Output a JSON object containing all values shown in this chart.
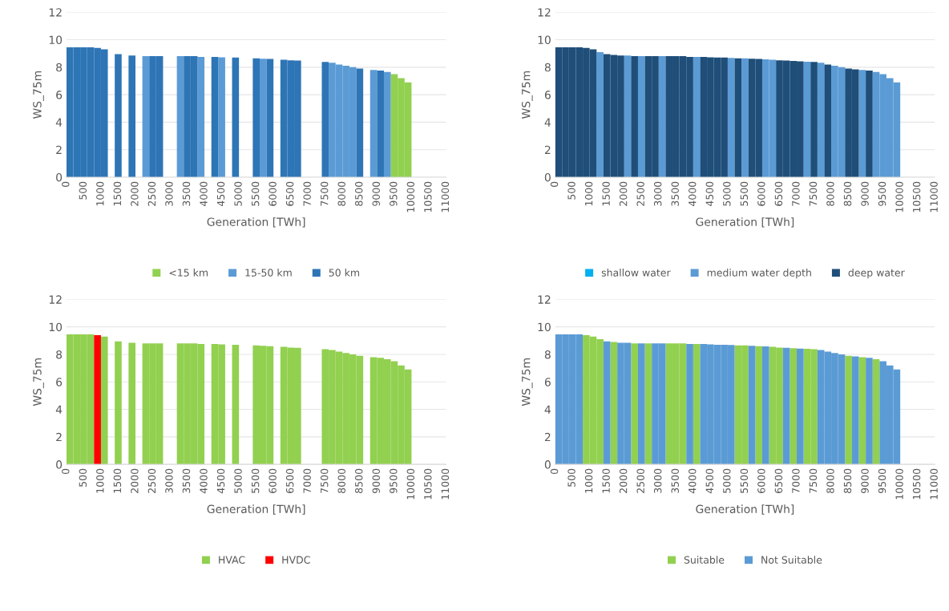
{
  "chart_data": [
    {
      "type": "bar",
      "xlabel": "Generation [TWh]",
      "ylabel": "WS_75m",
      "xlim": [
        0,
        11000
      ],
      "xticks": [
        0,
        500,
        1000,
        1500,
        2000,
        2500,
        3000,
        3500,
        4000,
        4500,
        5000,
        5500,
        6000,
        6500,
        7000,
        7500,
        8000,
        8500,
        9000,
        9500,
        10000,
        10500,
        11000
      ],
      "ylim": [
        0,
        12
      ],
      "yticks": [
        0,
        2,
        4,
        6,
        8,
        10,
        12
      ],
      "grid": "y",
      "legend": "bottom",
      "series": [
        {
          "name": "<15 km",
          "color": "#92d050",
          "x": [
            9500,
            9700,
            9900
          ],
          "values": [
            7.5,
            7.2,
            6.9
          ]
        },
        {
          "name": "15-50 km",
          "color": "#5b9bd5",
          "x": [
            2300,
            3300,
            3900,
            4500,
            5700,
            7700,
            7900,
            8100,
            8300,
            8900,
            9300
          ],
          "values": [
            8.8,
            8.8,
            8.75,
            8.72,
            8.62,
            8.32,
            8.2,
            8.1,
            8.0,
            7.8,
            7.65
          ]
        },
        {
          "name": "50 km",
          "color": "#2e75b6",
          "x": [
            100,
            300,
            500,
            700,
            900,
            1100,
            1500,
            1900,
            2500,
            2700,
            3500,
            3700,
            4300,
            4900,
            5500,
            5900,
            6300,
            6500,
            6700,
            7500,
            8500,
            9100
          ],
          "values": [
            9.45,
            9.45,
            9.45,
            9.45,
            9.4,
            9.3,
            8.95,
            8.85,
            8.8,
            8.8,
            8.8,
            8.8,
            8.75,
            8.7,
            8.65,
            8.6,
            8.55,
            8.5,
            8.48,
            8.38,
            7.9,
            7.75
          ]
        }
      ]
    },
    {
      "type": "bar",
      "xlabel": "Generation [TWh]",
      "ylabel": "WS_75m",
      "xlim": [
        0,
        11000
      ],
      "xticks": [
        0,
        500,
        1000,
        1500,
        2000,
        2500,
        3000,
        3500,
        4000,
        4500,
        5000,
        5500,
        6000,
        6500,
        7000,
        7500,
        8000,
        8500,
        9000,
        9500,
        10000,
        10500,
        11000
      ],
      "ylim": [
        0,
        12
      ],
      "yticks": [
        0,
        2,
        4,
        6,
        8,
        10,
        12
      ],
      "grid": "y",
      "legend": "bottom",
      "series": [
        {
          "name": "shallow water",
          "color": "#00b0f0"
        },
        {
          "name": "medium water depth",
          "color": "#5b9bd5",
          "x": [
            1300,
            2100,
            2500,
            3100,
            4100,
            5100,
            5500,
            6100,
            6300,
            7300,
            7700,
            8100,
            8300,
            8900,
            9300,
            9500,
            9700,
            9900
          ],
          "values": [
            9.1,
            8.85,
            8.8,
            8.8,
            8.75,
            8.68,
            8.65,
            8.58,
            8.55,
            8.4,
            8.32,
            8.1,
            8.0,
            7.8,
            7.65,
            7.5,
            7.2,
            6.9
          ]
        },
        {
          "name": "deep water",
          "color": "#1f4e79",
          "x": [
            100,
            300,
            500,
            700,
            900,
            1100,
            1500,
            1700,
            1900,
            2300,
            2700,
            2900,
            3300,
            3500,
            3700,
            3900,
            4300,
            4500,
            4700,
            4900,
            5300,
            5700,
            5900,
            6500,
            6700,
            6900,
            7100,
            7500,
            7900,
            8500,
            8700,
            9100
          ],
          "values": [
            9.45,
            9.45,
            9.45,
            9.45,
            9.4,
            9.3,
            8.95,
            8.9,
            8.85,
            8.8,
            8.8,
            8.8,
            8.8,
            8.8,
            8.8,
            8.75,
            8.75,
            8.72,
            8.7,
            8.7,
            8.65,
            8.62,
            8.6,
            8.5,
            8.48,
            8.45,
            8.42,
            8.38,
            8.2,
            7.9,
            7.85,
            7.75
          ]
        }
      ]
    },
    {
      "type": "bar",
      "xlabel": "Generation [TWh]",
      "ylabel": "WS_75m",
      "xlim": [
        0,
        11000
      ],
      "xticks": [
        0,
        500,
        1000,
        1500,
        2000,
        2500,
        3000,
        3500,
        4000,
        4500,
        5000,
        5500,
        6000,
        6500,
        7000,
        7500,
        8000,
        8500,
        9000,
        9500,
        10000,
        10500,
        11000
      ],
      "ylim": [
        0,
        12
      ],
      "yticks": [
        0,
        2,
        4,
        6,
        8,
        10,
        12
      ],
      "grid": "y",
      "legend": "bottom",
      "series": [
        {
          "name": "HVAC",
          "color": "#92d050",
          "x": [
            100,
            300,
            500,
            700,
            1100,
            1500,
            1900,
            2300,
            2500,
            2700,
            3300,
            3500,
            3700,
            3900,
            4300,
            4500,
            4900,
            5500,
            5700,
            5900,
            6300,
            6500,
            6700,
            7500,
            7700,
            7900,
            8100,
            8300,
            8500,
            8900,
            9100,
            9300,
            9500,
            9700,
            9900
          ],
          "values": [
            9.45,
            9.45,
            9.45,
            9.45,
            9.3,
            8.95,
            8.85,
            8.8,
            8.8,
            8.8,
            8.8,
            8.8,
            8.8,
            8.75,
            8.75,
            8.72,
            8.7,
            8.65,
            8.62,
            8.6,
            8.55,
            8.5,
            8.48,
            8.38,
            8.32,
            8.2,
            8.1,
            8.0,
            7.9,
            7.8,
            7.75,
            7.65,
            7.5,
            7.2,
            6.9
          ]
        },
        {
          "name": "HVDC",
          "color": "#ff0000",
          "x": [
            900
          ],
          "values": [
            9.4
          ]
        }
      ]
    },
    {
      "type": "bar",
      "xlabel": "Generation [TWh]",
      "ylabel": "WS_75m",
      "xlim": [
        0,
        11000
      ],
      "xticks": [
        0,
        500,
        1000,
        1500,
        2000,
        2500,
        3000,
        3500,
        4000,
        4500,
        5000,
        5500,
        6000,
        6500,
        7000,
        7500,
        8000,
        8500,
        9000,
        9500,
        10000,
        10500,
        11000
      ],
      "ylim": [
        0,
        12
      ],
      "yticks": [
        0,
        2,
        4,
        6,
        8,
        10,
        12
      ],
      "grid": "y",
      "legend": "bottom",
      "series": [
        {
          "name": "Suitable",
          "color": "#92d050",
          "x": [
            900,
            1100,
            1300,
            1700,
            2300,
            2700,
            3300,
            3500,
            3700,
            4100,
            5300,
            5500,
            5900,
            6300,
            6500,
            6900,
            7300,
            7500,
            8500,
            8900,
            9300
          ],
          "values": [
            9.4,
            9.3,
            9.1,
            8.9,
            8.8,
            8.8,
            8.8,
            8.8,
            8.8,
            8.75,
            8.65,
            8.65,
            8.6,
            8.55,
            8.5,
            8.45,
            8.4,
            8.38,
            7.9,
            7.8,
            7.65
          ]
        },
        {
          "name": "Not Suitable",
          "color": "#5b9bd5",
          "x": [
            100,
            300,
            500,
            700,
            1500,
            1900,
            2100,
            2500,
            2900,
            3100,
            3900,
            4300,
            4500,
            4700,
            4900,
            5100,
            5700,
            6100,
            6700,
            7100,
            7700,
            7900,
            8100,
            8300,
            8700,
            9100,
            9500,
            9700,
            9900
          ],
          "values": [
            9.45,
            9.45,
            9.45,
            9.45,
            8.95,
            8.85,
            8.85,
            8.8,
            8.8,
            8.8,
            8.75,
            8.75,
            8.72,
            8.7,
            8.7,
            8.68,
            8.62,
            8.58,
            8.48,
            8.42,
            8.32,
            8.2,
            8.1,
            8.0,
            7.85,
            7.75,
            7.5,
            7.2,
            6.9
          ]
        }
      ]
    }
  ]
}
